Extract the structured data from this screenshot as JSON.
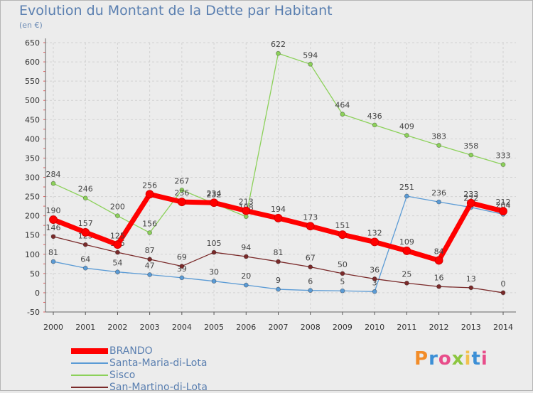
{
  "header": {
    "title": "Evolution du Montant de la Dette par Habitant",
    "unit": "(en €)"
  },
  "logo": {
    "text": "Proxiti",
    "colors": [
      "#f28c28",
      "#3c8fd6",
      "#e84d8a",
      "#8cc63f",
      "#f2c14e",
      "#3c8fd6",
      "#e84d8a"
    ]
  },
  "chart_data": {
    "type": "line",
    "title": "Evolution du Montant de la Dette par Habitant",
    "ylabel": "(en €)",
    "xlabel": "",
    "x": [
      "2000",
      "2001",
      "2002",
      "2003",
      "2004",
      "2005",
      "2006",
      "2007",
      "2008",
      "2009",
      "2010",
      "2011",
      "2012",
      "2013",
      "2014"
    ],
    "ylim": [
      -50,
      650
    ],
    "yticks": [
      -50,
      0,
      50,
      100,
      150,
      200,
      250,
      300,
      350,
      400,
      450,
      500,
      550,
      600,
      650
    ],
    "grid": true,
    "legend": "bottom-left",
    "series": [
      {
        "name": "BRANDO",
        "color": "#ff0000",
        "values": [
          190,
          157,
          125,
          256,
          236,
          234,
          213,
          194,
          173,
          151,
          132,
          109,
          84,
          233,
          212
        ]
      },
      {
        "name": "Santa-Maria-di-Lota",
        "color": "#5b9bd5",
        "values": [
          81,
          64,
          54,
          47,
          39,
          30,
          20,
          9,
          6,
          5,
          3,
          251,
          236,
          222,
          204
        ]
      },
      {
        "name": "Sisco",
        "color": "#8cd15a",
        "values": [
          284,
          246,
          200,
          156,
          267,
          232,
          198,
          622,
          594,
          464,
          436,
          409,
          383,
          358,
          333
        ]
      },
      {
        "name": "San-Martino-di-Lota",
        "color": "#7a2a2a",
        "values": [
          146,
          125,
          105,
          87,
          69,
          105,
          94,
          81,
          67,
          50,
          36,
          25,
          16,
          13,
          0
        ]
      }
    ]
  }
}
